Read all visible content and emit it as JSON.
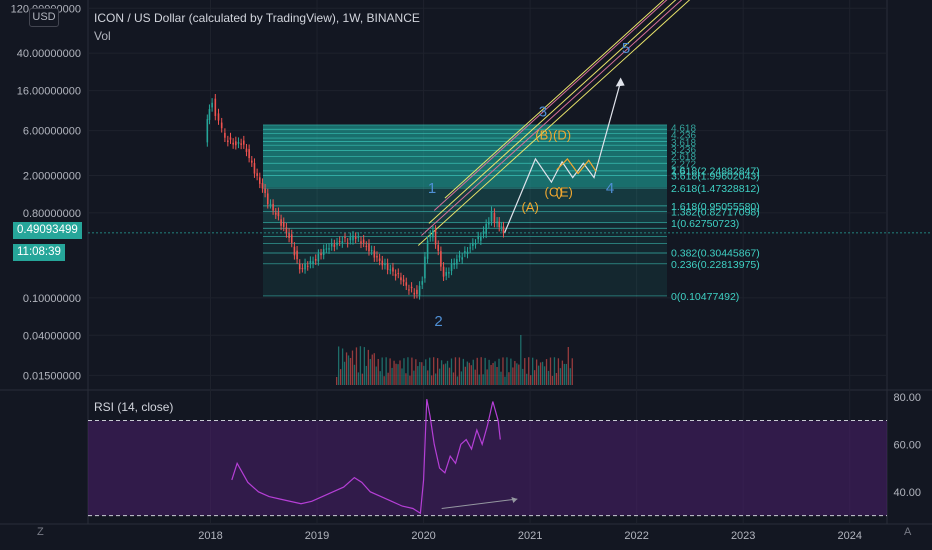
{
  "header": {
    "title": "ICON / US Dollar (calculated by TradingView), 1W, BINANCE",
    "volume_label": "Vol",
    "currency_button": "USD",
    "rsi_label": "RSI (14, close)",
    "z_button": "Z",
    "a_button": "A"
  },
  "colors": {
    "background": "#131722",
    "candle_up": "#26a69a",
    "candle_down": "#ef5350",
    "fib_fill": "#1fb6a9",
    "channel_yellow": "#e8e36a",
    "channel_pink": "#d7709a",
    "rsi_line": "#b53fd6",
    "rsi_band": "#4a1f6b",
    "wave_blue": "#4f8fd4",
    "wave_orange": "#f0a830",
    "price_tag": "#26a69a"
  },
  "last_price": {
    "value": "0.49093499",
    "countdown": "11:08:39"
  },
  "chart_data": [
    {
      "type": "line",
      "scale": "log",
      "y_axis_labels": [
        "120.00000000",
        "40.00000000",
        "16.00000000",
        "6.00000000",
        "2.00000000",
        "0.80000000",
        "0.10000000",
        "0.04000000",
        "0.01500000"
      ],
      "y_axis_values": [
        120,
        40,
        16,
        6,
        2,
        0.8,
        0.1,
        0.04,
        0.015
      ],
      "x_axis_labels": [
        "2018",
        "2019",
        "2020",
        "2021",
        "2022",
        "2023",
        "2024"
      ],
      "ylim": [
        0.011,
        130
      ],
      "xlim": [
        2016.85,
        2024.35
      ],
      "series": [
        {
          "points": [
            [
              2017.96,
              4.5
            ],
            [
              2017.98,
              7.5
            ],
            [
              2018.0,
              10.0
            ],
            [
              2018.03,
              12.5
            ],
            [
              2018.06,
              9.0
            ],
            [
              2018.09,
              7.5
            ],
            [
              2018.12,
              6.0
            ],
            [
              2018.15,
              5.0
            ],
            [
              2018.2,
              4.6
            ],
            [
              2018.25,
              4.3
            ],
            [
              2018.3,
              4.5
            ],
            [
              2018.35,
              3.6
            ],
            [
              2018.4,
              2.6
            ],
            [
              2018.45,
              1.9
            ],
            [
              2018.5,
              1.5
            ],
            [
              2018.55,
              1.05
            ],
            [
              2018.6,
              0.85
            ],
            [
              2018.65,
              0.7
            ],
            [
              2018.7,
              0.55
            ],
            [
              2018.75,
              0.45
            ],
            [
              2018.8,
              0.3
            ],
            [
              2018.85,
              0.2
            ],
            [
              2018.9,
              0.22
            ],
            [
              2018.95,
              0.24
            ],
            [
              2019.0,
              0.26
            ],
            [
              2019.05,
              0.3
            ],
            [
              2019.1,
              0.33
            ],
            [
              2019.15,
              0.36
            ],
            [
              2019.2,
              0.38
            ],
            [
              2019.25,
              0.42
            ],
            [
              2019.3,
              0.4
            ],
            [
              2019.35,
              0.45
            ],
            [
              2019.4,
              0.42
            ],
            [
              2019.45,
              0.38
            ],
            [
              2019.5,
              0.33
            ],
            [
              2019.55,
              0.28
            ],
            [
              2019.6,
              0.24
            ],
            [
              2019.65,
              0.22
            ],
            [
              2019.7,
              0.2
            ],
            [
              2019.75,
              0.18
            ],
            [
              2019.8,
              0.16
            ],
            [
              2019.85,
              0.13
            ],
            [
              2019.9,
              0.12
            ],
            [
              2019.95,
              0.11
            ],
            [
              2020.0,
              0.16
            ],
            [
              2020.05,
              0.42
            ],
            [
              2020.1,
              0.5
            ],
            [
              2020.15,
              0.3
            ],
            [
              2020.2,
              0.17
            ],
            [
              2020.25,
              0.2
            ],
            [
              2020.3,
              0.24
            ],
            [
              2020.35,
              0.27
            ],
            [
              2020.4,
              0.3
            ],
            [
              2020.45,
              0.35
            ],
            [
              2020.5,
              0.4
            ],
            [
              2020.55,
              0.45
            ],
            [
              2020.6,
              0.58
            ],
            [
              2020.65,
              0.8
            ],
            [
              2020.68,
              0.65
            ],
            [
              2020.72,
              0.6
            ],
            [
              2020.76,
              0.49
            ]
          ]
        }
      ],
      "fibonacci_labels": [
        "1.618(2.24882847)",
        "3.618(1.99602043)",
        "2.618(1.47328812)",
        "1.618(0.95055580)",
        "1.382(0.82717098)",
        "1(0.62750723)",
        "0.382(0.30445867)",
        "0.236(0.22813975)",
        "0(0.10477492)"
      ],
      "wave_labels": [
        "1",
        "2",
        "3",
        "4",
        "5",
        "(A)",
        "(B)",
        "(C)",
        "(D)",
        "(E)"
      ]
    },
    {
      "type": "line",
      "title": "RSI (14, close)",
      "y_axis_labels": [
        "80.00",
        "60.00",
        "40.00"
      ],
      "y_axis_values": [
        80,
        60,
        40
      ],
      "ylim": [
        29,
        82
      ],
      "upper_band": 70,
      "lower_band": 30,
      "series": [
        {
          "points": [
            [
              2018.2,
              45
            ],
            [
              2018.25,
              52
            ],
            [
              2018.3,
              48
            ],
            [
              2018.35,
              44
            ],
            [
              2018.45,
              40
            ],
            [
              2018.55,
              38
            ],
            [
              2018.65,
              37
            ],
            [
              2018.75,
              36
            ],
            [
              2018.85,
              35
            ],
            [
              2018.95,
              36
            ],
            [
              2019.05,
              38
            ],
            [
              2019.15,
              40
            ],
            [
              2019.25,
              42
            ],
            [
              2019.35,
              46
            ],
            [
              2019.42,
              44
            ],
            [
              2019.5,
              40
            ],
            [
              2019.6,
              38
            ],
            [
              2019.7,
              36
            ],
            [
              2019.8,
              34
            ],
            [
              2019.9,
              33
            ],
            [
              2019.97,
              31
            ],
            [
              2020.0,
              45
            ],
            [
              2020.03,
              79
            ],
            [
              2020.06,
              72
            ],
            [
              2020.1,
              60
            ],
            [
              2020.15,
              50
            ],
            [
              2020.2,
              48
            ],
            [
              2020.25,
              55
            ],
            [
              2020.3,
              52
            ],
            [
              2020.35,
              60
            ],
            [
              2020.4,
              62
            ],
            [
              2020.45,
              58
            ],
            [
              2020.5,
              66
            ],
            [
              2020.55,
              60
            ],
            [
              2020.6,
              68
            ],
            [
              2020.65,
              78
            ],
            [
              2020.7,
              70
            ],
            [
              2020.72,
              62
            ]
          ]
        }
      ]
    }
  ]
}
